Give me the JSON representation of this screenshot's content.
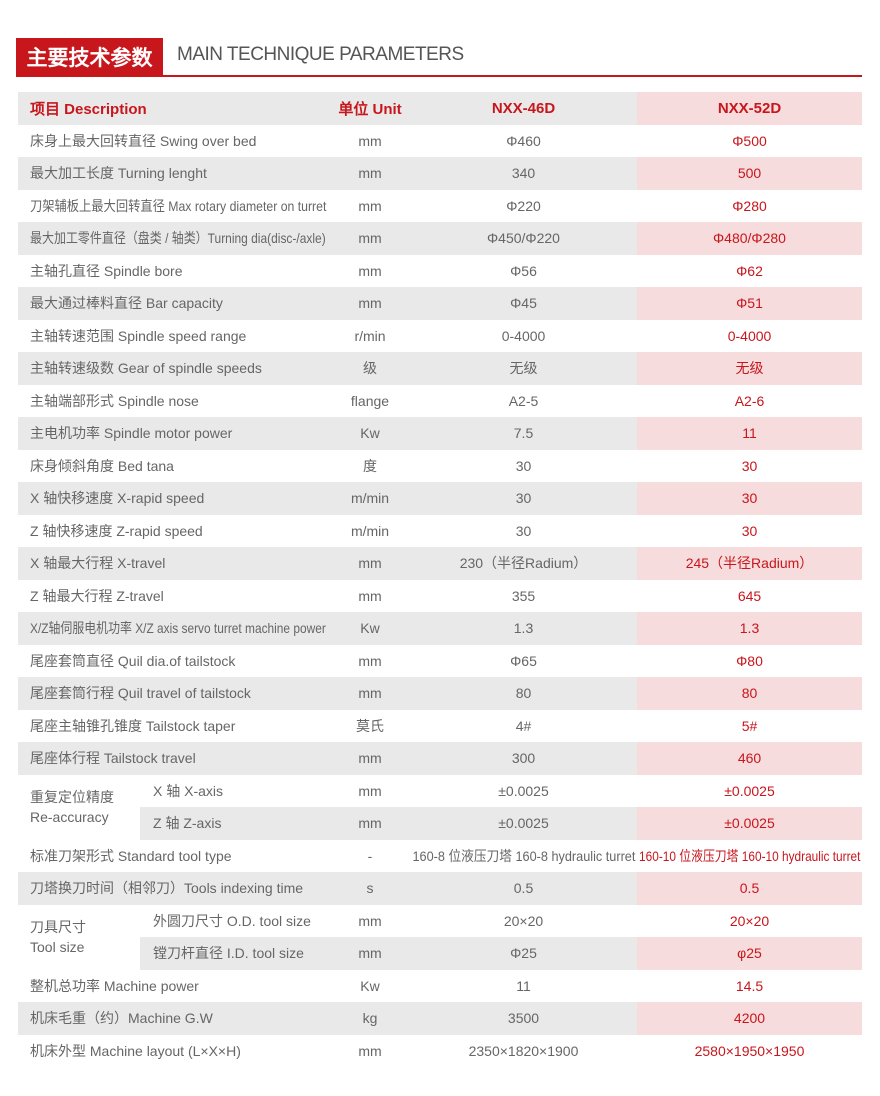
{
  "header": {
    "title_cn": "主要技术参数",
    "title_en": "MAIN TECHNIQUE PARAMETERS"
  },
  "table": {
    "columns": [
      "项目 Description",
      "单位 Unit",
      "NXX-46D",
      "NXX-52D"
    ],
    "rows": [
      [
        "床身上最大回转直径 Swing over bed",
        "mm",
        "Φ460",
        "Φ500"
      ],
      [
        "最大加工长度 Turning lenght",
        "mm",
        "340",
        "500"
      ],
      [
        "刀架辅板上最大回转直径 Max rotary diameter on turret",
        "mm",
        "Φ220",
        "Φ280"
      ],
      [
        "最大加工零件直径（盘类 / 轴类）Turning dia(disc-/axle)",
        "mm",
        "Φ450/Φ220",
        "Φ480/Φ280"
      ],
      [
        "主轴孔直径 Spindle bore",
        "mm",
        "Φ56",
        "Φ62"
      ],
      [
        "最大通过棒料直径 Bar capacity",
        "mm",
        "Φ45",
        "Φ51"
      ],
      [
        "主轴转速范围 Spindle speed range",
        "r/min",
        "0-4000",
        "0-4000"
      ],
      [
        "主轴转速级数 Gear of spindle speeds",
        "级",
        "无级",
        "无级"
      ],
      [
        "主轴端部形式 Spindle nose",
        "flange",
        "A2-5",
        "A2-6"
      ],
      [
        "主电机功率 Spindle motor power",
        "Kw",
        "7.5",
        "11"
      ],
      [
        "床身倾斜角度 Bed tana",
        "度",
        "30",
        "30"
      ],
      [
        "X 轴快移速度 X-rapid speed",
        "m/min",
        "30",
        "30"
      ],
      [
        "Z 轴快移速度 Z-rapid speed",
        "m/min",
        "30",
        "30"
      ],
      [
        "X 轴最大行程 X-travel",
        "mm",
        "230（半径Radium）",
        "245（半径Radium）"
      ],
      [
        "Z 轴最大行程 Z-travel",
        "mm",
        "355",
        "645"
      ],
      [
        "X/Z轴伺服电机功率 X/Z axis servo turret machine power",
        "Kw",
        "1.3",
        "1.3"
      ],
      [
        "尾座套筒直径 Quil dia.of tailstock",
        "mm",
        "Φ65",
        "Φ80"
      ],
      [
        "尾座套筒行程 Quil travel of tailstock",
        "mm",
        "80",
        "80"
      ],
      [
        "尾座主轴锥孔锥度 Tailstock taper",
        "莫氏",
        "4#",
        "5#"
      ],
      [
        "尾座体行程 Tailstock travel",
        "mm",
        "300",
        "460"
      ],
      {
        "group": [
          "重复定位精度",
          "Re-accuracy"
        ],
        "items": [
          [
            "X 轴 X-axis",
            "mm",
            "±0.0025",
            "±0.0025"
          ],
          [
            "Z 轴 Z-axis",
            "mm",
            "±0.0025",
            "±0.0025"
          ]
        ]
      },
      [
        "标准刀架形式 Standard tool type",
        "-",
        "160-8 位液压刀塔 160-8 hydraulic turret",
        "160-10 位液压刀塔 160-10 hydraulic turret"
      ],
      [
        "刀塔换刀时间（相邻刀）Tools indexing time",
        "s",
        "0.5",
        "0.5"
      ],
      {
        "group": [
          "刀具尺寸",
          "Tool size"
        ],
        "items": [
          [
            "外圆刀尺寸 O.D. tool size",
            "mm",
            "20×20",
            "20×20"
          ],
          [
            "镗刀杆直径 I.D. tool size",
            "mm",
            "Φ25",
            "φ25"
          ]
        ]
      },
      [
        "整机总功率 Machine power",
        "Kw",
        "11",
        "14.5"
      ],
      [
        "机床毛重（约）Machine G.W",
        "kg",
        "3500",
        "4200"
      ],
      [
        "机床外型 Machine layout (L×X×H)",
        "mm",
        "2350×1820×1900",
        "2580×1950×1950"
      ]
    ]
  }
}
